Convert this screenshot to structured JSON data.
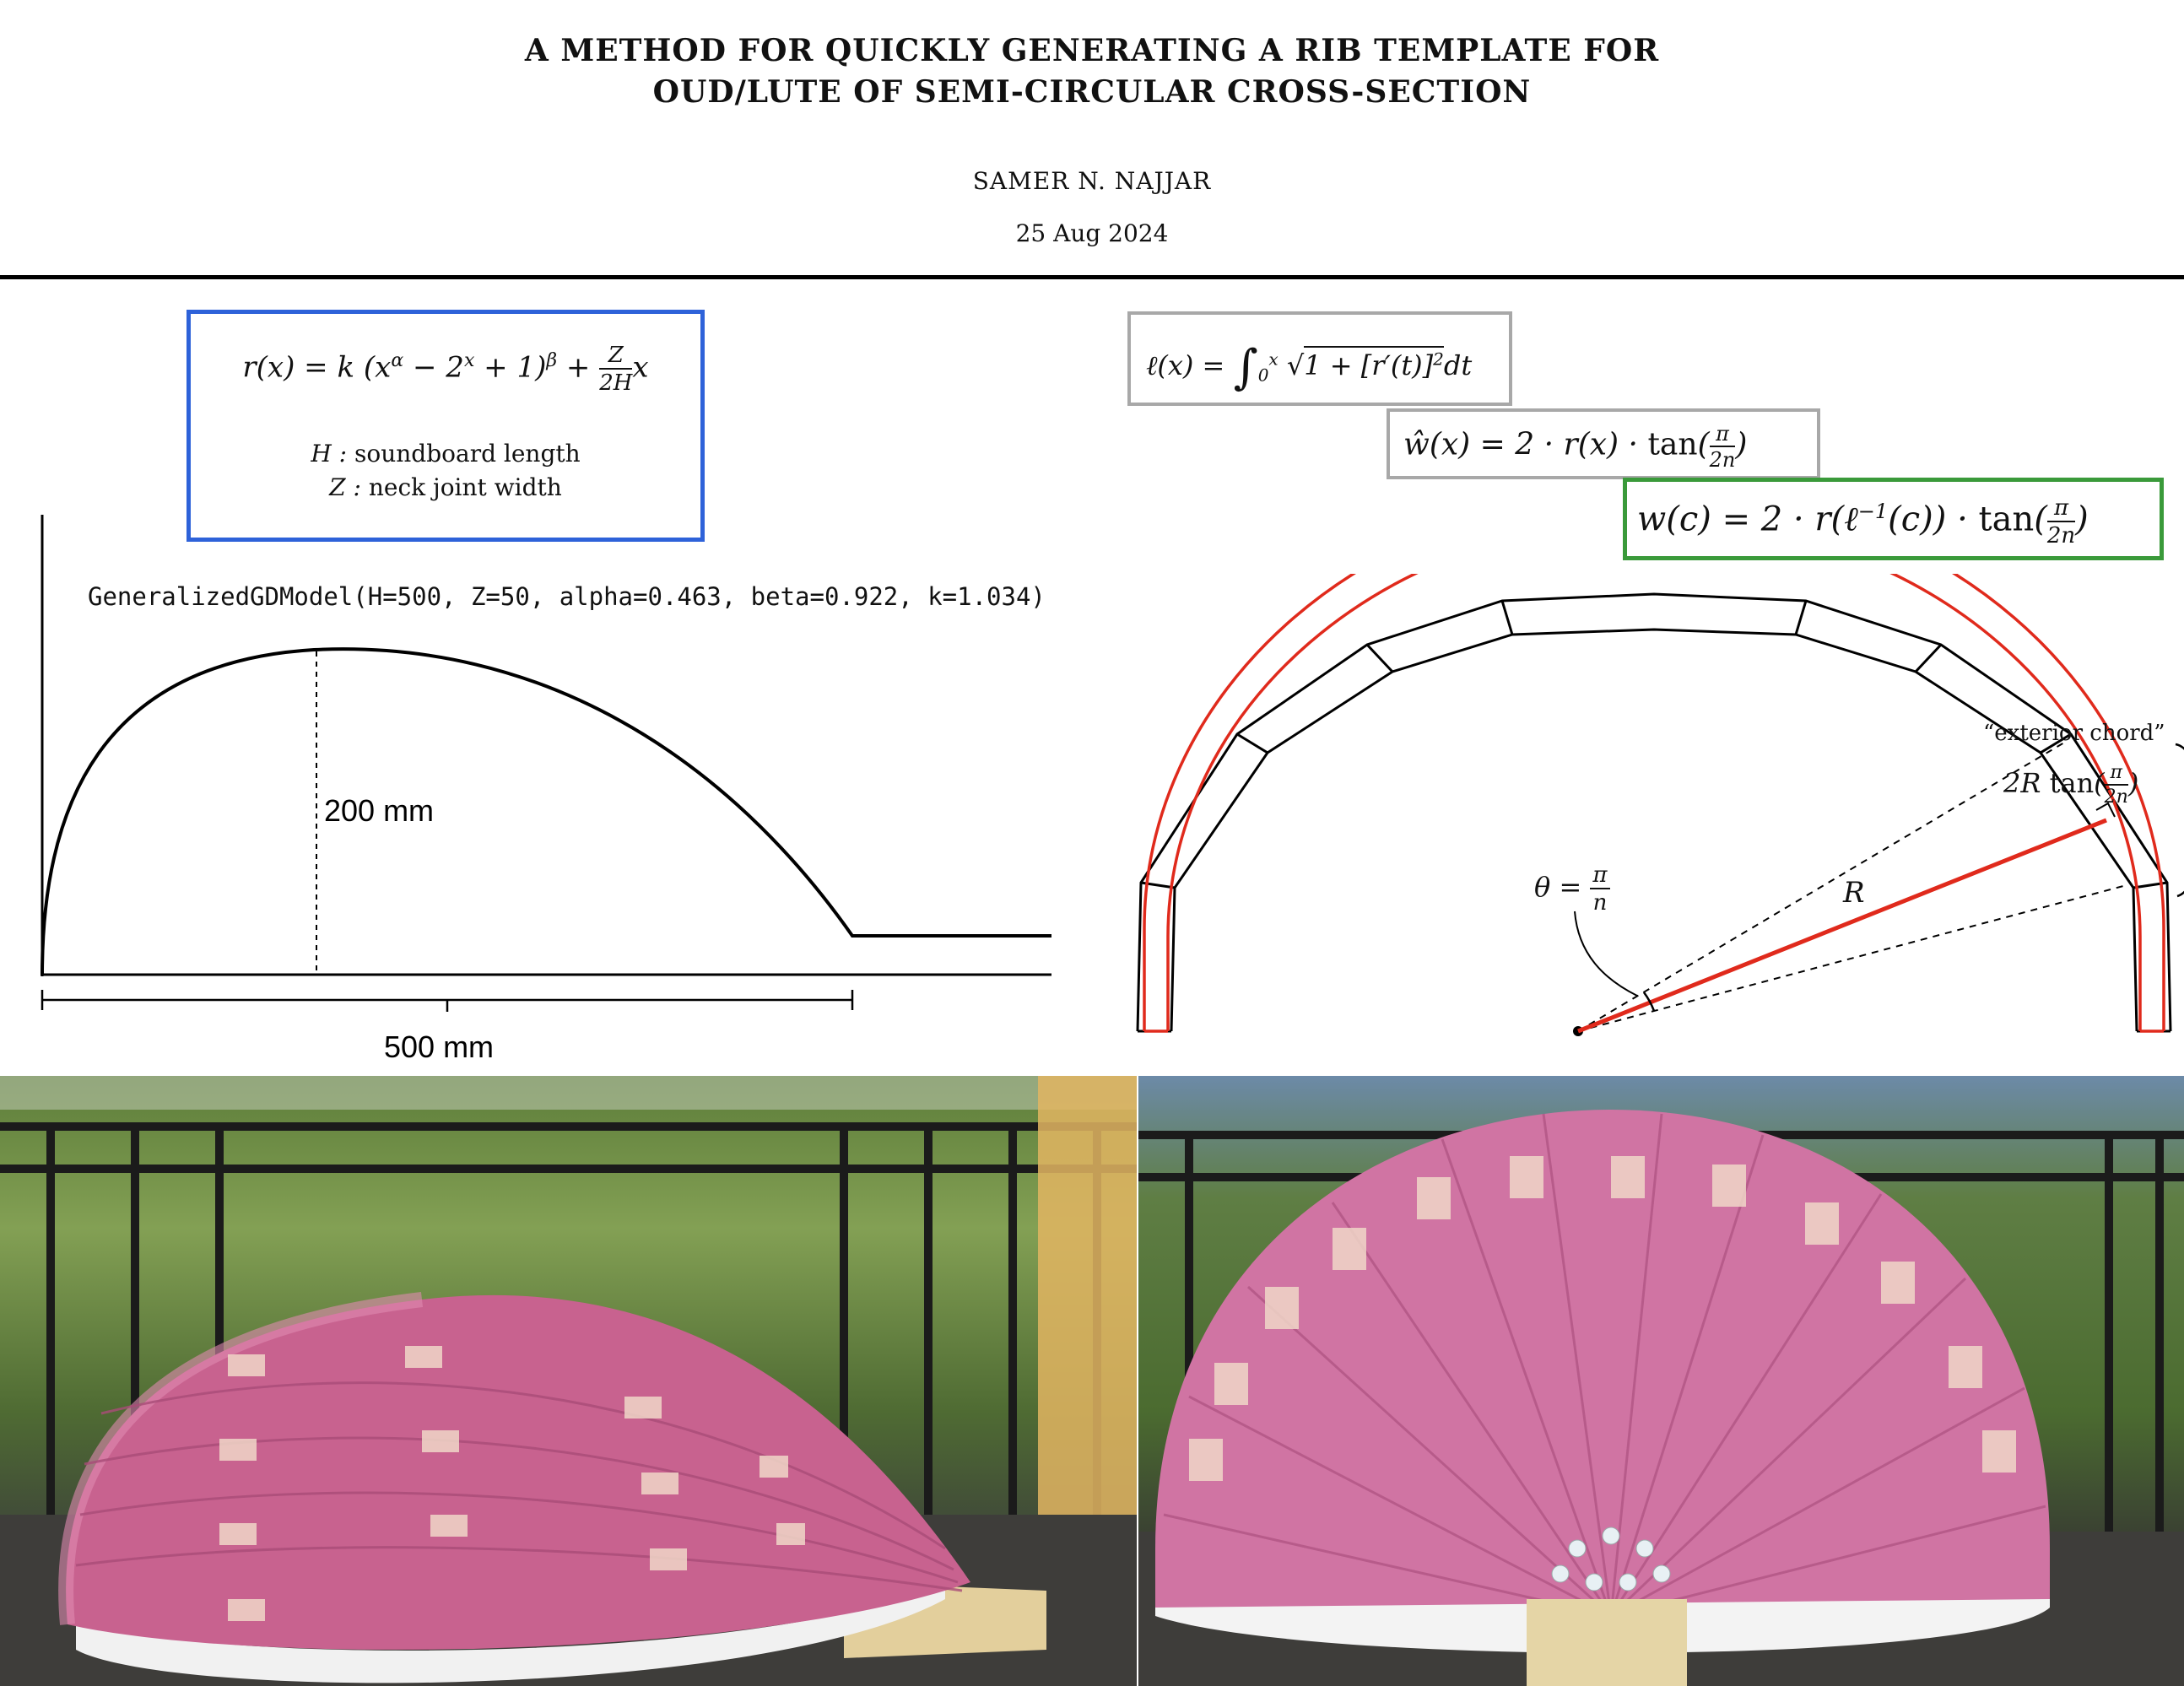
{
  "header": {
    "title_line1": "A METHOD FOR QUICKLY GENERATING A RIB TEMPLATE FOR",
    "title_line2": "OUD/LUTE OF SEMI-CIRCULAR CROSS-SECTION",
    "author": "SAMER N. NAJJAR",
    "date": "25 Aug 2024"
  },
  "model_box": {
    "formula": "r(x) = k (x^α − 2^x + 1)^β + (Z / 2H) x",
    "legend_H_symbol": "H :",
    "legend_H_text": "soundboard length",
    "legend_Z_symbol": "Z :",
    "legend_Z_text": "neck joint width",
    "border_color": "#2e62d9"
  },
  "equations": {
    "arc_length": "ℓ(x) = ∫₀ˣ √(1 + [r′(t)]²) dt",
    "width_hat": "ŵ(x) = 2 · r(x) · tan(π / 2n)",
    "width_c": "w(c) = 2 · r(ℓ⁻¹(c)) · tan(π / 2n)",
    "gray_border": "#a8a8a8",
    "green_border": "#3a9a3a"
  },
  "profile_plot": {
    "model_label": "GeneralizedGDModel(H=500, Z=50, alpha=0.463, beta=0.922, k=1.034)",
    "height_label": "200 mm",
    "length_label": "500 mm"
  },
  "cross_section": {
    "exterior_chord_label": "“exterior chord”",
    "chord_formula": "2R tan(π / 2n)",
    "theta_label": "θ = π / n",
    "radius_label": "R",
    "rib_color": "#e02a1c"
  },
  "photos": {
    "left": {
      "name": "side view of pink paper rib mockup on balcony"
    },
    "right": {
      "name": "end view of pink paper rib mockup on wood block"
    }
  }
}
